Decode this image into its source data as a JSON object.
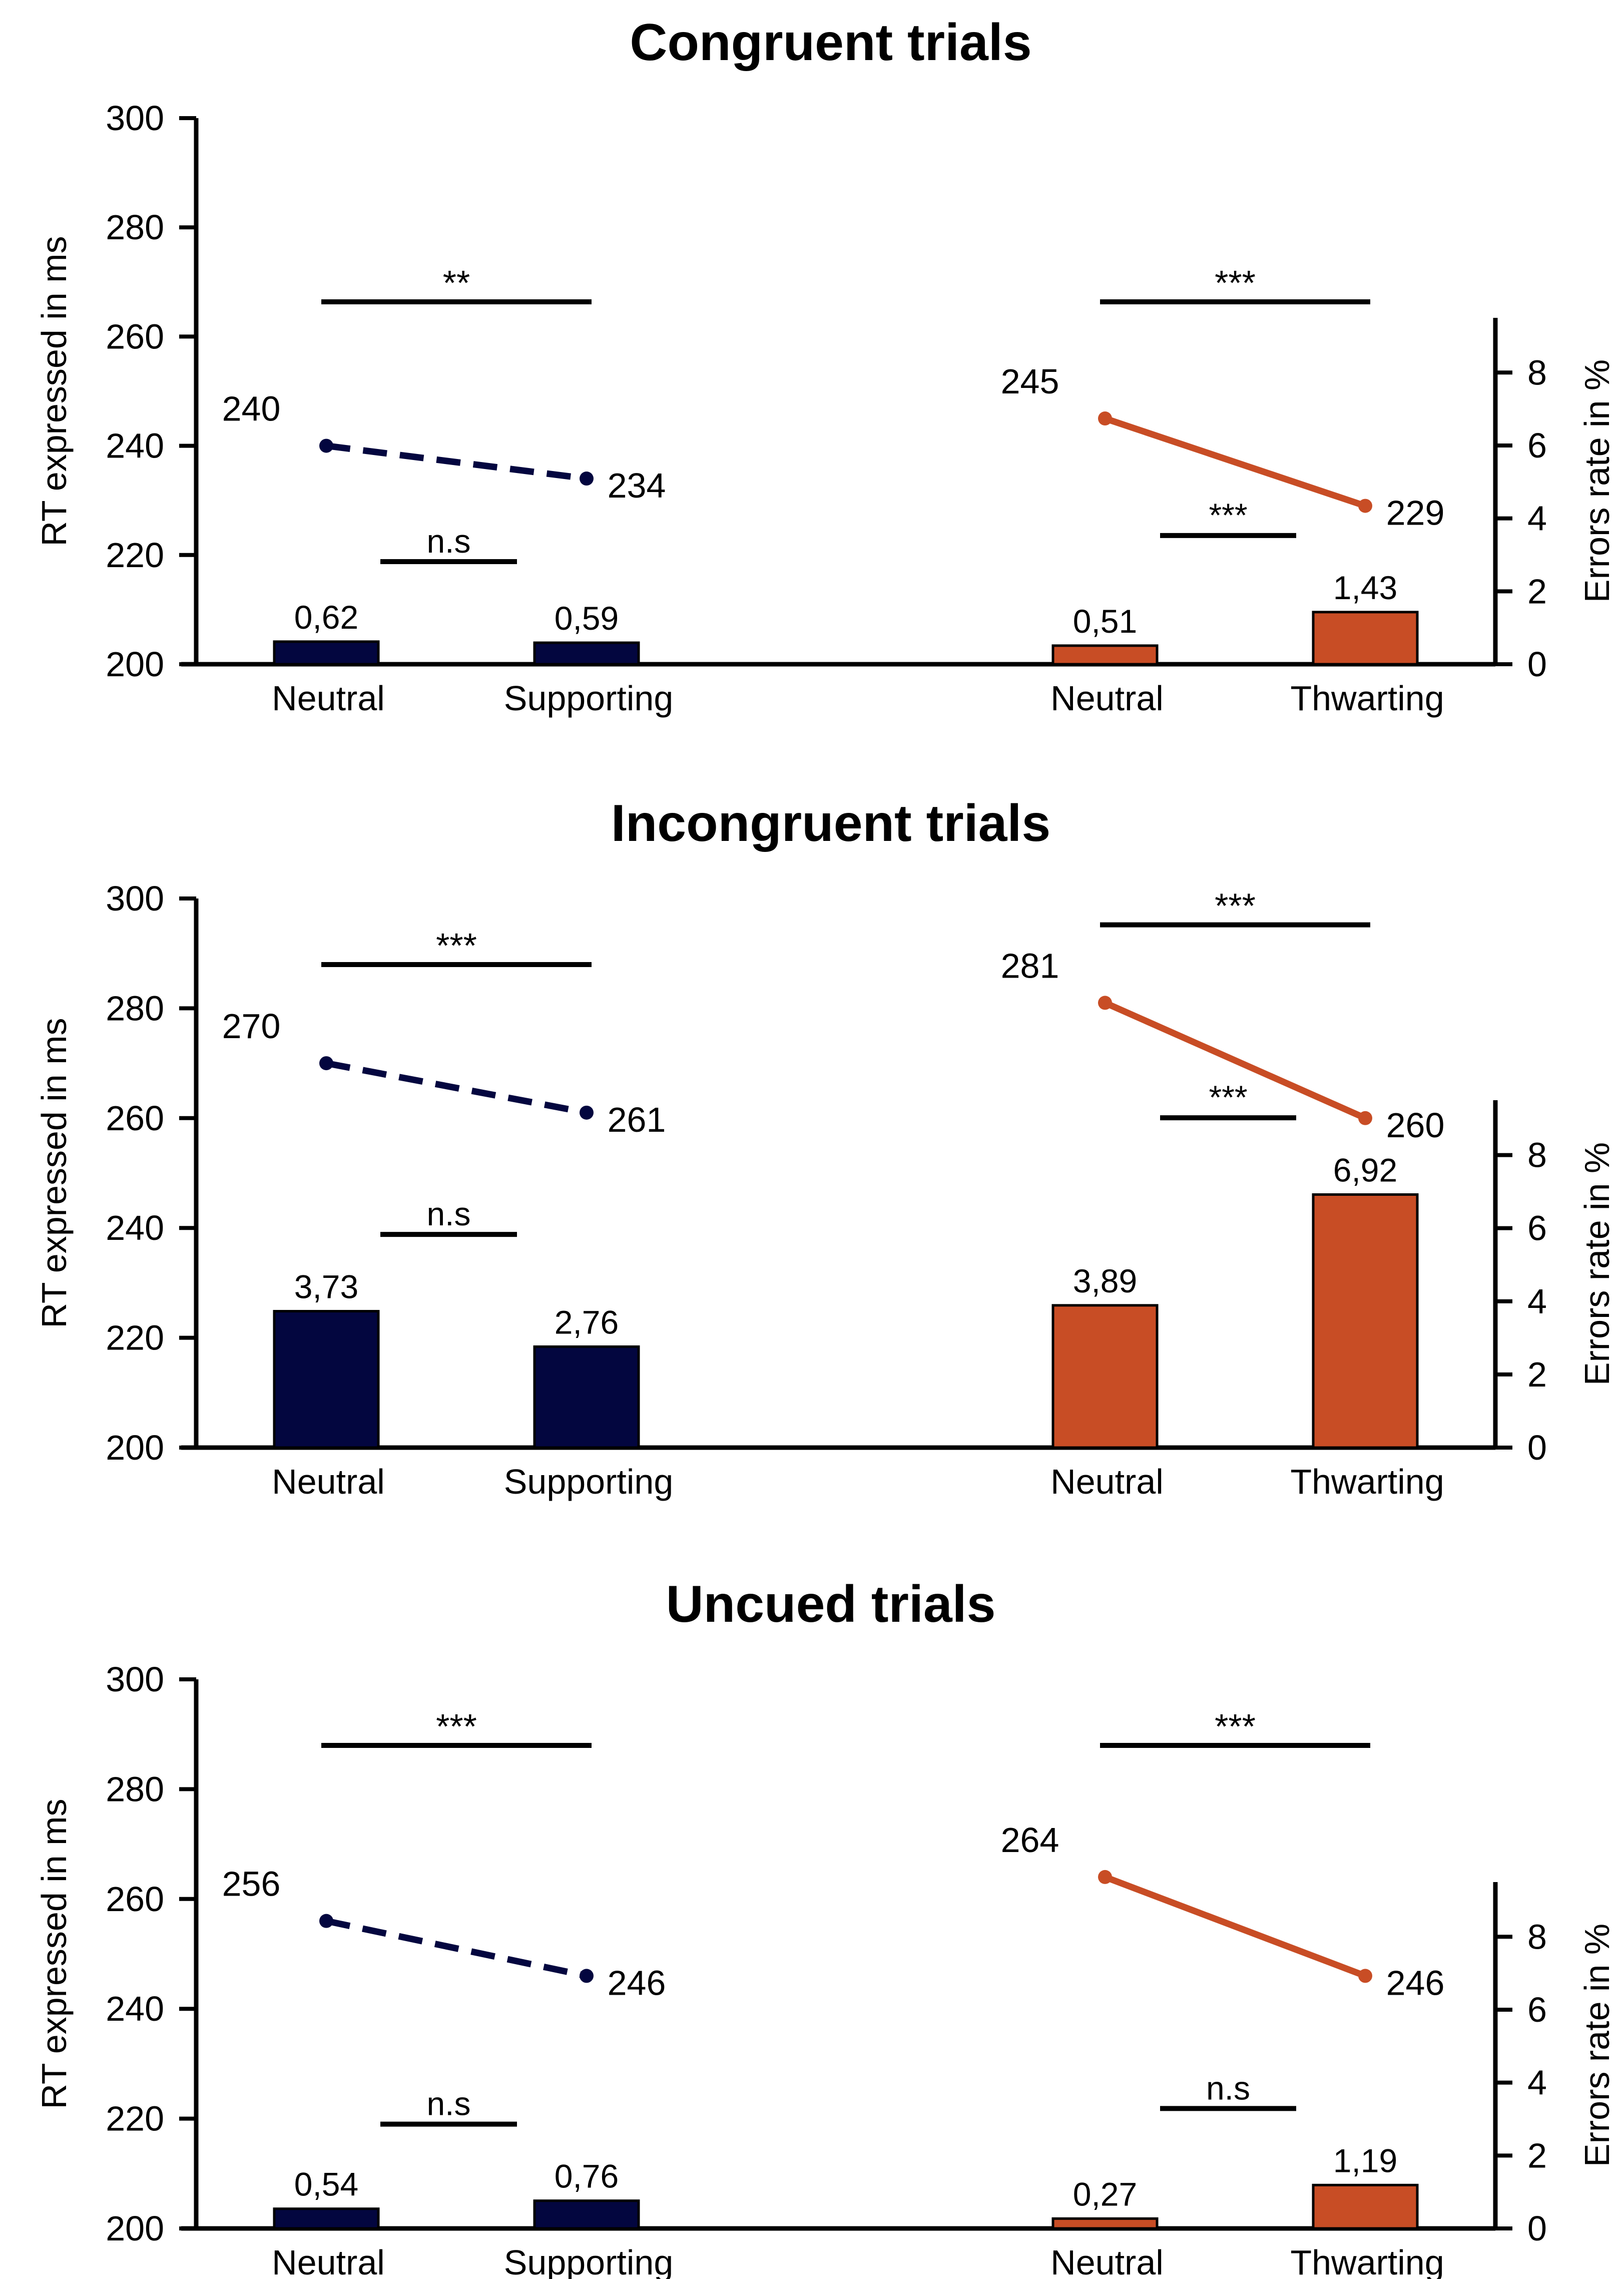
{
  "colors": {
    "supporting": "#03063f",
    "thwarting": "#c84d25",
    "axis": "#000000"
  },
  "chart_data": [
    {
      "type": "bar",
      "title": "Congruent trials",
      "ylabel": "RT expressed in ms",
      "y2label": "Errors rate in %",
      "ylim": [
        200,
        300
      ],
      "yticks": [
        200,
        220,
        240,
        260,
        280,
        300
      ],
      "y2lim": [
        0,
        9.5
      ],
      "y2ticks": [
        0,
        2,
        4,
        6,
        8
      ],
      "groups": [
        {
          "categories": [
            "Neutral",
            "Supporting"
          ],
          "color": "supporting",
          "line_style": "dashed",
          "rt": [
            240,
            234
          ],
          "rt_labels": [
            "240",
            "234"
          ],
          "errors": [
            0.62,
            0.59
          ],
          "error_labels": [
            "0,62",
            "0,59"
          ],
          "rt_sig": "**",
          "error_sig": "n.s"
        },
        {
          "categories": [
            "Neutral",
            "Thwarting"
          ],
          "color": "thwarting",
          "line_style": "solid",
          "rt": [
            245,
            229
          ],
          "rt_labels": [
            "245",
            "229"
          ],
          "errors": [
            0.51,
            1.43
          ],
          "error_labels": [
            "0,51",
            "1,43"
          ],
          "rt_sig": "***",
          "error_sig": "***"
        }
      ]
    },
    {
      "type": "bar",
      "title": "Incongruent trials",
      "ylabel": "RT expressed in ms",
      "y2label": "Errors rate in %",
      "ylim": [
        200,
        300
      ],
      "yticks": [
        200,
        220,
        240,
        260,
        280,
        300
      ],
      "y2lim": [
        0,
        9.5
      ],
      "y2ticks": [
        0,
        2,
        4,
        6,
        8
      ],
      "groups": [
        {
          "categories": [
            "Neutral",
            "Supporting"
          ],
          "color": "supporting",
          "line_style": "dashed",
          "rt": [
            270,
            261
          ],
          "rt_labels": [
            "270",
            "261"
          ],
          "errors": [
            3.73,
            2.76
          ],
          "error_labels": [
            "3,73",
            "2,76"
          ],
          "rt_sig": "***",
          "error_sig": "n.s"
        },
        {
          "categories": [
            "Neutral",
            "Thwarting"
          ],
          "color": "thwarting",
          "line_style": "solid",
          "rt": [
            281,
            260
          ],
          "rt_labels": [
            "281",
            "260"
          ],
          "errors": [
            3.89,
            6.92
          ],
          "error_labels": [
            "3,89",
            "6,92"
          ],
          "rt_sig": "***",
          "error_sig": "***"
        }
      ]
    },
    {
      "type": "bar",
      "title": "Uncued trials",
      "ylabel": "RT expressed in ms",
      "y2label": "Errors rate in %",
      "ylim": [
        200,
        300
      ],
      "yticks": [
        200,
        220,
        240,
        260,
        280,
        300
      ],
      "y2lim": [
        0,
        9.5
      ],
      "y2ticks": [
        0,
        2,
        4,
        6,
        8
      ],
      "groups": [
        {
          "categories": [
            "Neutral",
            "Supporting"
          ],
          "color": "supporting",
          "line_style": "dashed",
          "rt": [
            256,
            246
          ],
          "rt_labels": [
            "256",
            "246"
          ],
          "errors": [
            0.54,
            0.76
          ],
          "error_labels": [
            "0,54",
            "0,76"
          ],
          "rt_sig": "***",
          "error_sig": "n.s"
        },
        {
          "categories": [
            "Neutral",
            "Thwarting"
          ],
          "color": "thwarting",
          "line_style": "solid",
          "rt": [
            264,
            246
          ],
          "rt_labels": [
            "264",
            "246"
          ],
          "errors": [
            0.27,
            1.19
          ],
          "error_labels": [
            "0,27",
            "1,19"
          ],
          "rt_sig": "***",
          "error_sig": "n.s"
        }
      ]
    }
  ]
}
